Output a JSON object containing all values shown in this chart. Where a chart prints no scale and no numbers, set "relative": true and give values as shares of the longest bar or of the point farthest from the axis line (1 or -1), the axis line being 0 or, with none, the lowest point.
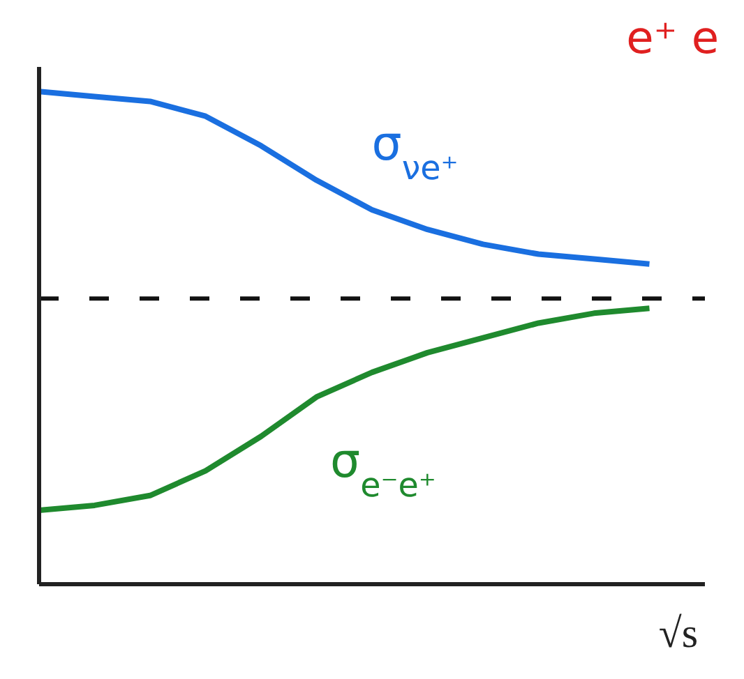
{
  "chart_data": {
    "type": "line",
    "relative": true,
    "xlabel": "√s",
    "annotations": [
      "e⁺ e"
    ],
    "marker": "none",
    "line_style": "solid",
    "categories": [
      null,
      null,
      null,
      null,
      null,
      null,
      null,
      null,
      null,
      null,
      null,
      null,
      null
    ],
    "series": [
      {
        "name": "σ$_{νe⁺}$",
        "color": "#1a6fe0",
        "values": [
          1,
          0.99,
          0.98,
          0.95,
          0.89,
          0.82,
          0.76,
          0.72,
          0.69,
          0.67,
          0.66,
          0.65,
          null
        ]
      },
      {
        "name": "σ$_{e⁻e⁺}$",
        "color": "#1f8a2e",
        "values": [
          0.15,
          0.16,
          0.18,
          0.23,
          0.3,
          0.38,
          0.43,
          0.47,
          0.5,
          0.53,
          0.55,
          0.56,
          null
        ]
      }
    ],
    "ref_lines": [
      {
        "axis": "y",
        "value": 0.58,
        "color": "#111111",
        "line_style": "dashed"
      }
    ]
  }
}
